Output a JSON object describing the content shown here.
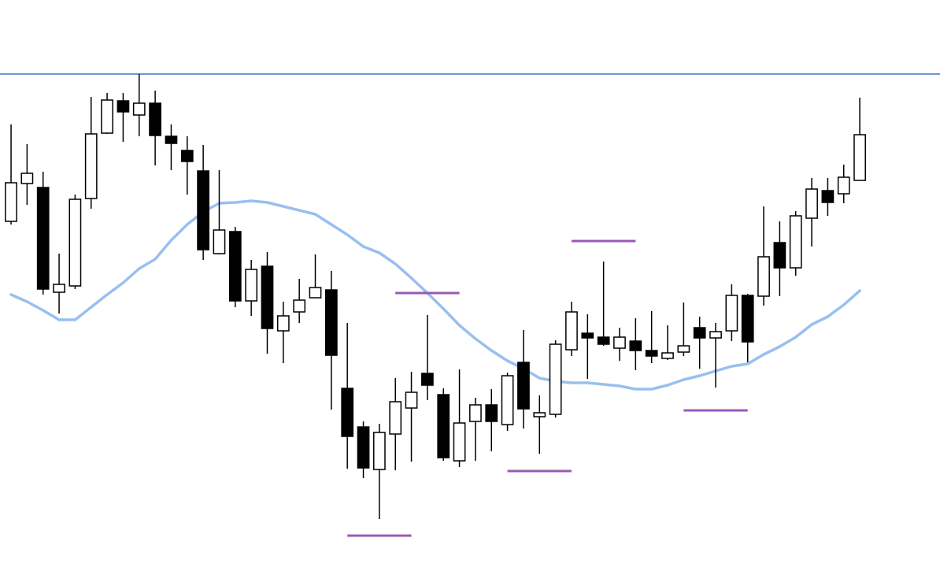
{
  "chart_data": {
    "type": "candlestick",
    "xlim": [
      -0.69,
      58.01
    ],
    "ylim": [
      0,
      716
    ],
    "up_color": "#ffffff",
    "down_color": "#000000",
    "edge_color": "#000000",
    "open": [
      435,
      483,
      478,
      345,
      353,
      464,
      547,
      588,
      570,
      585,
      543,
      525,
      499,
      394,
      422,
      334,
      378,
      296,
      320,
      338,
      348,
      223,
      174,
      120,
      165,
      198,
      242,
      215,
      131,
      181,
      202,
      177,
      256,
      187,
      190,
      272,
      293,
      288,
      274,
      283,
      271,
      261,
      269,
      300,
      287,
      296,
      341,
      340,
      408,
      376,
      439,
      474,
      470,
      487
    ],
    "high": [
      558,
      533,
      498,
      394,
      469,
      593,
      598,
      598,
      622,
      601,
      558,
      543,
      532,
      500,
      428,
      386,
      396,
      333,
      362,
      393,
      372,
      306,
      181,
      178,
      236,
      244,
      316,
      223,
      247,
      211,
      222,
      243,
      297,
      214,
      284,
      333,
      317,
      384,
      300,
      312,
      321,
      303,
      332,
      314,
      306,
      355,
      343,
      454,
      435,
      448,
      490,
      490,
      507,
      592
    ],
    "low": [
      431,
      456,
      342,
      318,
      349,
      451,
      546,
      536,
      543,
      506,
      500,
      469,
      386,
      393,
      326,
      315,
      267,
      255,
      306,
      338,
      196,
      121,
      109,
      57,
      119,
      130,
      208,
      131,
      123,
      131,
      143,
      169,
      172,
      140,
      186,
      264,
      235,
      277,
      258,
      246,
      255,
      259,
      264,
      248,
      224,
      283,
      256,
      328,
      340,
      366,
      403,
      442,
      458,
      487
    ],
    "close": [
      484,
      496,
      349,
      355,
      463,
      546,
      589,
      574,
      585,
      544,
      534,
      511,
      399,
      424,
      334,
      374,
      299,
      315,
      335,
      351,
      265,
      162,
      122,
      167,
      206,
      218,
      227,
      135,
      179,
      202,
      181,
      239,
      197,
      192,
      279,
      320,
      287,
      279,
      288,
      271,
      264,
      268,
      277,
      287,
      295,
      341,
      282,
      390,
      376,
      442,
      476,
      459,
      491,
      545
    ],
    "moving_average": {
      "color": "#99bff0",
      "values": [
        342,
        333,
        322,
        310,
        310,
        326,
        342,
        357,
        375,
        387,
        411,
        431,
        447,
        458,
        459,
        461,
        459,
        454,
        449,
        444,
        431,
        418,
        403,
        395,
        381,
        363,
        344,
        324,
        303,
        286,
        271,
        258,
        248,
        236,
        232,
        230,
        230,
        228,
        226,
        222,
        222,
        227,
        234,
        239,
        245,
        251,
        254,
        266,
        276,
        288,
        304,
        314,
        329,
        347
      ]
    },
    "levels": {
      "color": "#9b59b6",
      "items": [
        {
          "value": 344,
          "x": [
            24,
            28
          ]
        },
        {
          "value": 410,
          "x": [
            35,
            39
          ]
        },
        {
          "value": 36,
          "x": [
            21,
            25
          ]
        },
        {
          "value": 118,
          "x": [
            31,
            35
          ]
        },
        {
          "value": 195,
          "x": [
            42,
            46
          ]
        }
      ]
    },
    "hline": {
      "value": 622,
      "color": "#4472c4"
    }
  }
}
